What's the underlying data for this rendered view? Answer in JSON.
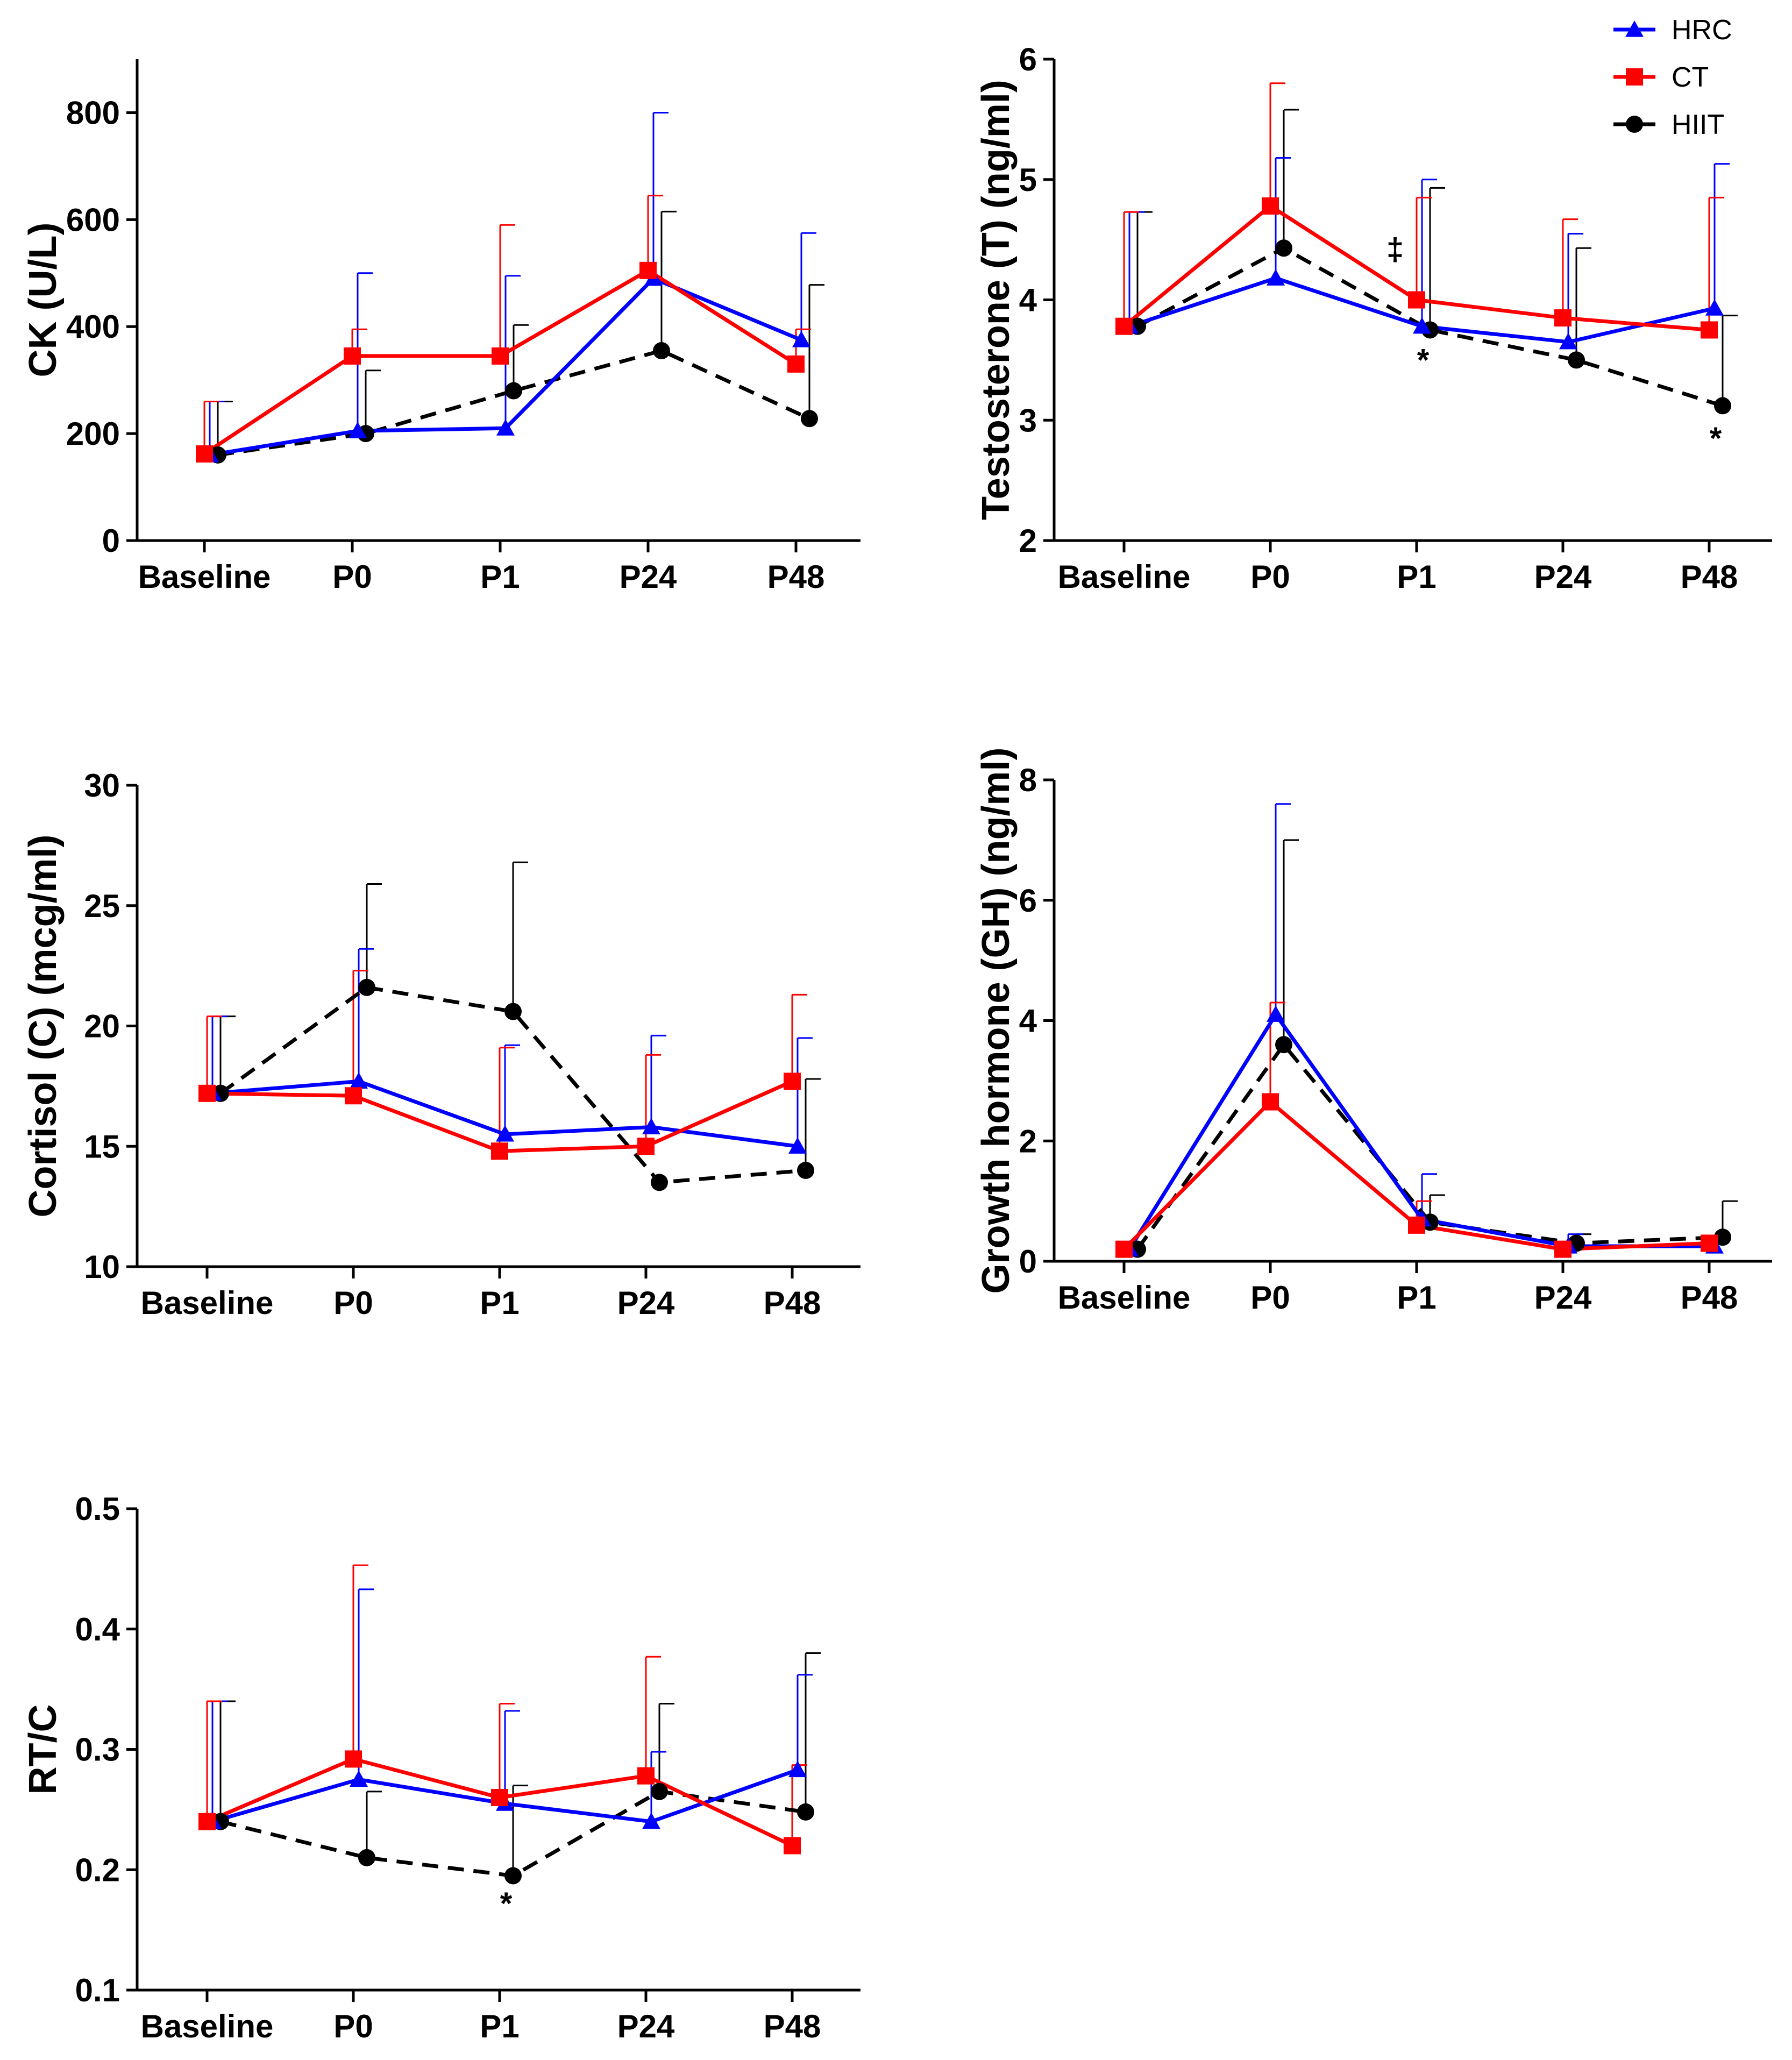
{
  "colors": {
    "HRC": "#0000ff",
    "CT": "#ff0000",
    "HIIT": "#000000"
  },
  "legend": [
    {
      "name": "HRC",
      "marker": "triangle"
    },
    {
      "name": "CT",
      "marker": "square"
    },
    {
      "name": "HIIT",
      "marker": "circle"
    }
  ],
  "chart_data": [
    {
      "type": "line",
      "id": "ck",
      "ylabel": "CK (U/L)",
      "categories": [
        "Baseline",
        "P0",
        "P1",
        "P24",
        "P48"
      ],
      "ylim": [
        0,
        900
      ],
      "yticks": [
        0,
        200,
        400,
        600,
        800
      ],
      "series": [
        {
          "name": "HRC",
          "values": [
            160,
            205,
            210,
            490,
            375
          ],
          "errors": [
            100,
            295,
            285,
            310,
            200
          ]
        },
        {
          "name": "CT",
          "values": [
            162,
            345,
            345,
            505,
            330
          ],
          "errors": [
            98,
            50,
            245,
            140,
            65
          ]
        },
        {
          "name": "HIIT",
          "values": [
            160,
            200,
            280,
            355,
            228
          ],
          "errors": [
            100,
            118,
            123,
            260,
            250
          ]
        }
      ],
      "annotations": []
    },
    {
      "type": "line",
      "id": "testosterone",
      "ylabel": "Testosterone (T) (ng/ml)",
      "categories": [
        "Baseline",
        "P0",
        "P1",
        "P24",
        "P48"
      ],
      "ylim": [
        2,
        6
      ],
      "yticks": [
        2,
        3,
        4,
        5,
        6
      ],
      "series": [
        {
          "name": "HRC",
          "values": [
            3.78,
            4.18,
            3.78,
            3.65,
            3.93
          ],
          "errors": [
            0.95,
            1.0,
            1.22,
            0.9,
            1.2
          ]
        },
        {
          "name": "CT",
          "values": [
            3.78,
            4.78,
            4.0,
            3.85,
            3.75
          ],
          "errors": [
            0.95,
            1.02,
            0.85,
            0.82,
            1.1
          ]
        },
        {
          "name": "HIIT",
          "values": [
            3.78,
            4.43,
            3.75,
            3.5,
            3.12
          ],
          "errors": [
            0.95,
            1.15,
            1.18,
            0.93,
            0.75
          ]
        }
      ],
      "annotations": [
        {
          "category": "P1",
          "value": 4.42,
          "text": "‡"
        },
        {
          "category": "P1",
          "value": 3.5,
          "text": "*"
        },
        {
          "category": "P48",
          "value": 2.85,
          "text": "*"
        }
      ]
    },
    {
      "type": "line",
      "id": "cortisol",
      "ylabel": "Cortisol (C) (mcg/ml)",
      "categories": [
        "Baseline",
        "P0",
        "P1",
        "P24",
        "P48"
      ],
      "ylim": [
        10,
        30
      ],
      "yticks": [
        10,
        15,
        20,
        25,
        30
      ],
      "series": [
        {
          "name": "HRC",
          "values": [
            17.2,
            17.7,
            15.5,
            15.8,
            15.0
          ],
          "errors": [
            3.2,
            5.5,
            3.7,
            3.8,
            4.5
          ]
        },
        {
          "name": "CT",
          "values": [
            17.2,
            17.1,
            14.8,
            15.0,
            17.7
          ],
          "errors": [
            3.2,
            5.2,
            4.3,
            3.8,
            3.6
          ]
        },
        {
          "name": "HIIT",
          "values": [
            17.2,
            21.6,
            20.6,
            13.5,
            14.0
          ],
          "errors": [
            3.2,
            4.3,
            6.2,
            0,
            3.8
          ]
        }
      ],
      "annotations": []
    },
    {
      "type": "line",
      "id": "growth-hormone",
      "ylabel": "Growth hormone (GH) (ng/ml)",
      "categories": [
        "Baseline",
        "P0",
        "P1",
        "P24",
        "P48"
      ],
      "ylim": [
        0,
        8
      ],
      "yticks": [
        0,
        2,
        4,
        6,
        8
      ],
      "series": [
        {
          "name": "HRC",
          "values": [
            0.2,
            4.1,
            0.7,
            0.25,
            0.25
          ],
          "errors": [
            0,
            3.5,
            0.75,
            0.2,
            0
          ]
        },
        {
          "name": "CT",
          "values": [
            0.2,
            2.65,
            0.6,
            0.2,
            0.3
          ],
          "errors": [
            0,
            1.65,
            0.4,
            0,
            0
          ]
        },
        {
          "name": "HIIT",
          "values": [
            0.2,
            3.6,
            0.65,
            0.3,
            0.4
          ],
          "errors": [
            0,
            3.4,
            0.45,
            0.15,
            0.6
          ]
        }
      ],
      "annotations": []
    },
    {
      "type": "line",
      "id": "rt-c",
      "ylabel": "RT/C",
      "categories": [
        "Baseline",
        "P0",
        "P1",
        "P24",
        "P48"
      ],
      "ylim": [
        0.1,
        0.5
      ],
      "yticks": [
        0.1,
        0.2,
        0.3,
        0.4,
        0.5
      ],
      "series": [
        {
          "name": "HRC",
          "values": [
            0.24,
            0.275,
            0.255,
            0.24,
            0.283
          ],
          "errors": [
            0.1,
            0.158,
            0.077,
            0.058,
            0.079
          ]
        },
        {
          "name": "CT",
          "values": [
            0.24,
            0.292,
            0.26,
            0.278,
            0.22
          ],
          "errors": [
            0.1,
            0.161,
            0.078,
            0.099,
            0.067
          ]
        },
        {
          "name": "HIIT",
          "values": [
            0.24,
            0.21,
            0.195,
            0.265,
            0.248
          ],
          "errors": [
            0.1,
            0.055,
            0.075,
            0.073,
            0.132
          ]
        }
      ],
      "annotations": [
        {
          "category": "P1",
          "value": 0.172,
          "text": "*"
        }
      ]
    }
  ]
}
